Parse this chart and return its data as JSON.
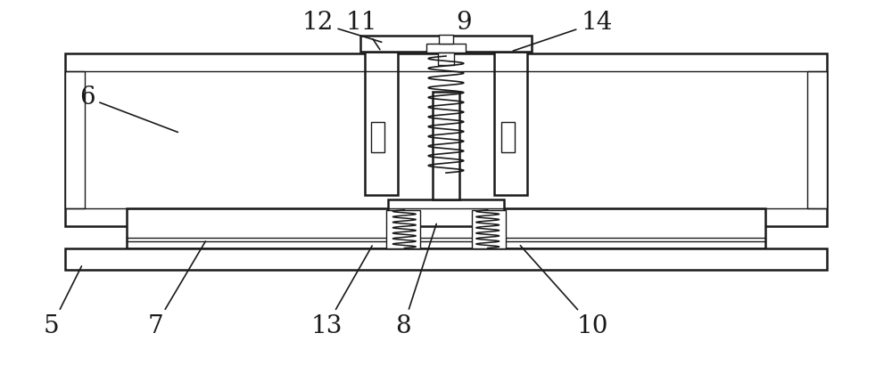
{
  "bg_color": "#ffffff",
  "line_color": "#1a1a1a",
  "lw_main": 1.8,
  "lw_thin": 1.0,
  "label_fontsize": 20,
  "fig_w": 10.0,
  "fig_h": 4.29,
  "dpi": 100
}
